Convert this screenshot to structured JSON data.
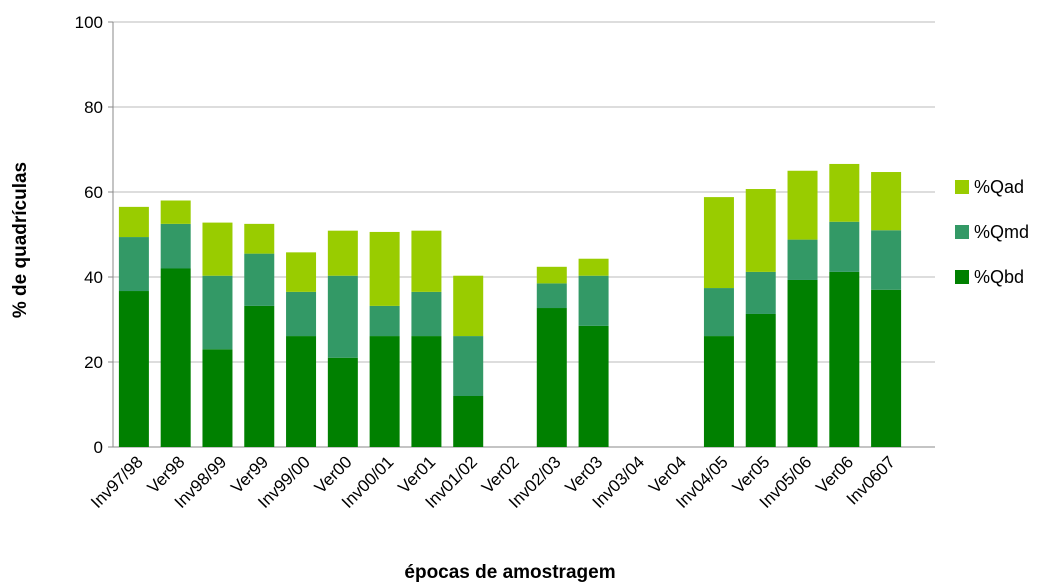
{
  "chart_data": {
    "type": "stacked_bar",
    "x_label": "épocas de amostragem",
    "y_label": "% de quadrículas",
    "categories": [
      "Inv97/98",
      "Ver98",
      "Inv98/99",
      "Ver99",
      "Inv99/00",
      "Ver00",
      "Inv00/01",
      "Ver01",
      "Inv01/02",
      "Ver02",
      "Inv02/03",
      "Ver03",
      "Inv03/04",
      "Ver04",
      "Inv04/05",
      "Ver05",
      "Inv05/06",
      "Ver06",
      "Inv0607"
    ],
    "series": [
      {
        "name": "%Qbd",
        "color": "#008000",
        "values": [
          36.7,
          42,
          23,
          33.2,
          26.1,
          21,
          26.1,
          26.1,
          12,
          null,
          32.7,
          28.5,
          null,
          null,
          26.1,
          31.3,
          39.3,
          41.2,
          37
        ]
      },
      {
        "name": "%Qmd",
        "color": "#339966",
        "values": [
          12.7,
          10.5,
          17.3,
          12.3,
          10.4,
          19.3,
          7.1,
          10.4,
          14.1,
          null,
          5.8,
          11.8,
          null,
          null,
          11.3,
          9.9,
          9.5,
          11.8,
          14
        ]
      },
      {
        "name": "%Qad",
        "color": "#99cc00",
        "values": [
          7.1,
          5.5,
          12.5,
          7,
          9.3,
          10.6,
          17.4,
          14.4,
          14.2,
          null,
          3.9,
          4,
          null,
          null,
          21.4,
          19.5,
          16.2,
          13.6,
          13.7
        ]
      }
    ],
    "ylim": [
      0,
      100
    ],
    "yticks": [
      0,
      20,
      40,
      60,
      80,
      100
    ],
    "grid": true,
    "legend": "right"
  }
}
